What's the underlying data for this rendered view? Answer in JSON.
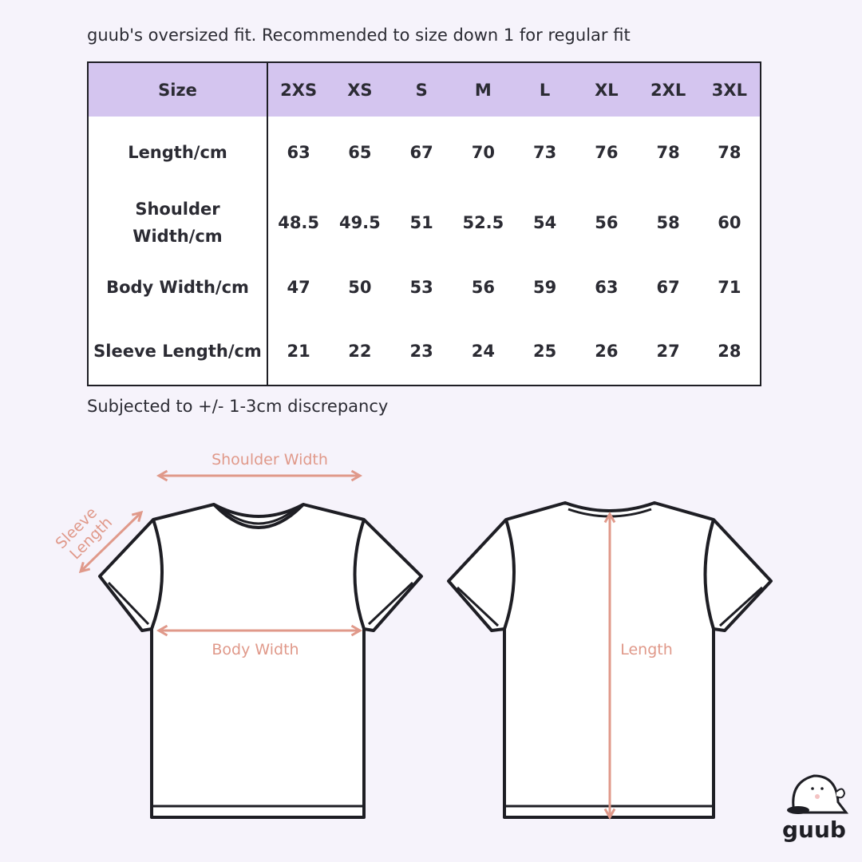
{
  "header_note": "guub's oversized fit. Recommended to size down 1 for regular fit",
  "table": {
    "header_label": "Size",
    "sizes": [
      "2XS",
      "XS",
      "S",
      "M",
      "L",
      "XL",
      "2XL",
      "3XL"
    ],
    "rows": [
      {
        "label": "Length/cm",
        "values": [
          "63",
          "65",
          "67",
          "70",
          "73",
          "76",
          "78",
          "78"
        ]
      },
      {
        "label": "Shoulder Width/cm",
        "values": [
          "48.5",
          "49.5",
          "51",
          "52.5",
          "54",
          "56",
          "58",
          "60"
        ]
      },
      {
        "label": "Body Width/cm",
        "values": [
          "47",
          "50",
          "53",
          "56",
          "59",
          "63",
          "67",
          "71"
        ]
      },
      {
        "label": "Sleeve Length/cm",
        "values": [
          "21",
          "22",
          "23",
          "24",
          "25",
          "26",
          "27",
          "28"
        ]
      }
    ]
  },
  "footer_note": "Subjected to +/- 1-3cm discrepancy",
  "diagram": {
    "shoulder_width": "Shoulder Width",
    "sleeve_length_line1": "Sleeve",
    "sleeve_length_line2": "Length",
    "body_width": "Body Width",
    "length": "Length"
  },
  "logo": {
    "text": "guub"
  },
  "colors": {
    "header_bg": "#d4c5ef",
    "measure": "#e0998a",
    "background": "#f6f3fb"
  }
}
